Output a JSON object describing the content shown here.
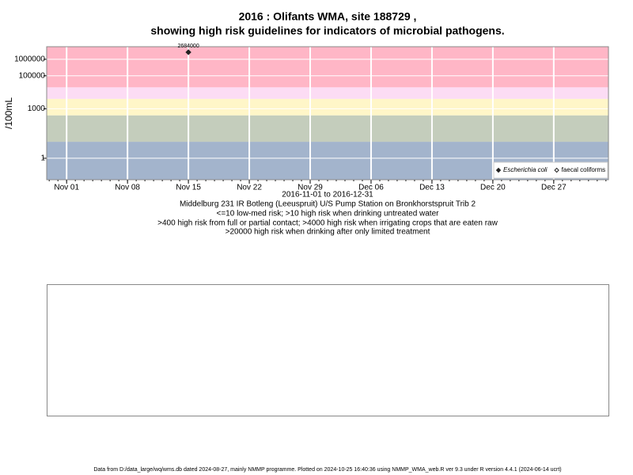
{
  "chart_data": {
    "type": "scatter",
    "title": "2016 : Olifants WMA, site 188729 ,",
    "subtitle": "showing high risk guidelines for indicators of microbial pathogens.",
    "y_label": "/100mL",
    "log_y": true,
    "grid": true,
    "legend_position": "bottom-right",
    "xlim": [
      "2016-10-29T17:00:00Z",
      "2017-01-02T07:00:00Z"
    ],
    "xticks": [
      {
        "value": "2016-11-01",
        "label": "Nov 01"
      },
      {
        "value": "2016-11-08",
        "label": "Nov 08"
      },
      {
        "value": "2016-11-15",
        "label": "Nov 15"
      },
      {
        "value": "2016-11-22",
        "label": "Nov 22"
      },
      {
        "value": "2016-11-29",
        "label": "Nov 29"
      },
      {
        "value": "2016-12-06",
        "label": "Dec 06"
      },
      {
        "value": "2016-12-13",
        "label": "Dec 13"
      },
      {
        "value": "2016-12-20",
        "label": "Dec 20"
      },
      {
        "value": "2016-12-27",
        "label": "Dec 27"
      }
    ],
    "ylim": [
      0.05,
      5800000
    ],
    "yticks": [
      1,
      1000,
      100000,
      1000000
    ],
    "bands": [
      {
        "from": 0.05,
        "to": 10,
        "color": "#a3b4cc"
      },
      {
        "from": 10,
        "to": 400,
        "color": "#c4cdbc"
      },
      {
        "from": 400,
        "to": 4000,
        "color": "#fff6c8"
      },
      {
        "from": 4000,
        "to": 20000,
        "color": "#fcdcf4"
      },
      {
        "from": 20000,
        "to": 5800000,
        "color": "#ffb6c6"
      }
    ],
    "series": [
      {
        "name": "Escherichia coli",
        "color": "#222222",
        "marker": "filled-diamond",
        "x": [
          "2016-11-15"
        ],
        "values": [
          2684000
        ]
      },
      {
        "name": "faecal coliforms",
        "color": "#222222",
        "marker": "open-diamond",
        "x": [],
        "values": []
      }
    ],
    "date_range": "2016-11-01 to 2016-12-31",
    "site_name": "Middelburg 231 IR Botleng (Leeuspruit) U/S Pump Station on Bronkhorstspruit Trib 2",
    "guidelines": [
      "<=10 low-med risk; >10 high risk when drinking untreated water",
      ">400 high risk from full or partial contact; >4000 high risk when irrigating crops that are eaten raw",
      ">20000 high risk when drinking after only limited treatment"
    ],
    "footer": "Data from D:/data_large/wq/wms.db dated 2024-08-27, mainly NMMP programme. Plotted on 2024-10-25 16:40:36 using NMMP_WMA_web.R ver 9.3 under R version 4.4.1 (2024-06-14 ucrt)"
  }
}
